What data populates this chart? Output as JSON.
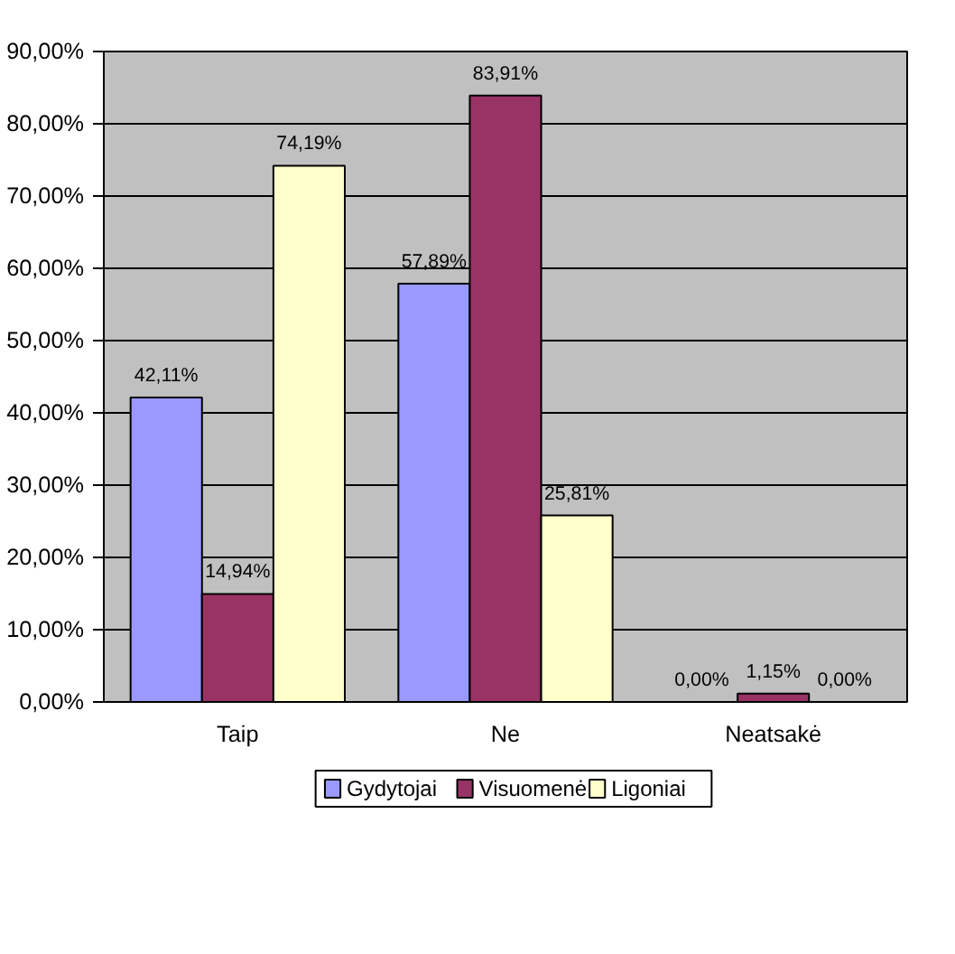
{
  "chart_data": {
    "type": "bar",
    "categories": [
      "Taip",
      "Ne",
      "Neatsakė"
    ],
    "series": [
      {
        "name": "Gydytojai",
        "color": "#9999ff",
        "values": [
          42.11,
          57.89,
          0.0
        ],
        "value_labels": [
          "42,11%",
          "57,89%",
          "0,00%"
        ]
      },
      {
        "name": "Visuomenė",
        "color": "#993366",
        "values": [
          14.94,
          83.91,
          1.15
        ],
        "value_labels": [
          "14,94%",
          "83,91%",
          "1,15%"
        ]
      },
      {
        "name": "Ligoniai",
        "color": "#ffffcc",
        "values": [
          74.19,
          25.81,
          0.0
        ],
        "value_labels": [
          "74,19%",
          "25,81%",
          "0,00%"
        ]
      }
    ],
    "ylim": [
      0,
      90
    ],
    "yticks": [
      {
        "value": 0,
        "label": "0,00%"
      },
      {
        "value": 10,
        "label": "10,00%"
      },
      {
        "value": 20,
        "label": "20,00%"
      },
      {
        "value": 30,
        "label": "30,00%"
      },
      {
        "value": 40,
        "label": "40,00%"
      },
      {
        "value": 50,
        "label": "50,00%"
      },
      {
        "value": 60,
        "label": "60,00%"
      },
      {
        "value": 70,
        "label": "70,00%"
      },
      {
        "value": 80,
        "label": "80,00%"
      },
      {
        "value": 90,
        "label": "90,00%"
      }
    ],
    "grid": "y",
    "legend": "bottom"
  }
}
